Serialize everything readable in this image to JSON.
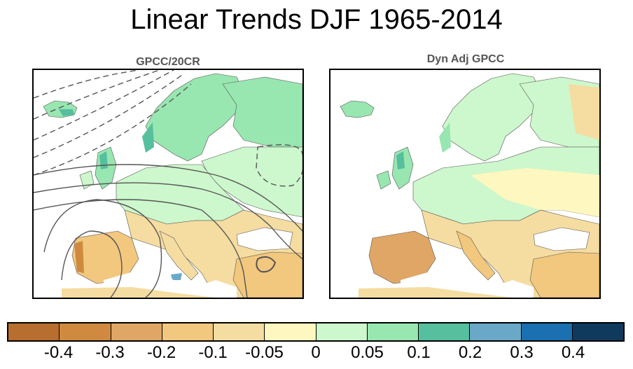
{
  "title": "Linear Trends DJF 1965-2014",
  "panels": [
    {
      "title": "GPCC/20CR"
    },
    {
      "title": "Dyn Adj GPCC"
    }
  ],
  "colorbar": {
    "colors": [
      "#b86e2e",
      "#d08a40",
      "#e0a665",
      "#f2c77e",
      "#f5dca0",
      "#fff7c0",
      "#cdf7cc",
      "#98e6b0",
      "#55bf9e",
      "#6aa8c8",
      "#1a70b0",
      "#0f3a5e"
    ],
    "labels": [
      "-0.4",
      "-0.3",
      "-0.2",
      "-0.1",
      "-0.05",
      "0",
      "0.05",
      "0.1",
      "0.2",
      "0.3",
      "0.4"
    ]
  }
}
